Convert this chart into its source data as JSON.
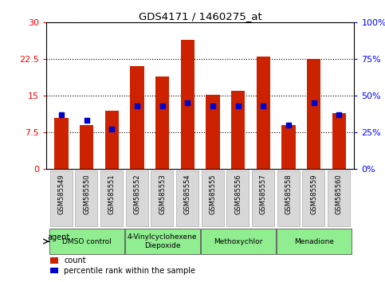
{
  "title": "GDS4171 / 1460275_at",
  "samples": [
    "GSM585549",
    "GSM585550",
    "GSM585551",
    "GSM585552",
    "GSM585553",
    "GSM585554",
    "GSM585555",
    "GSM585556",
    "GSM585557",
    "GSM585558",
    "GSM585559",
    "GSM585560"
  ],
  "count_values": [
    10.5,
    9.0,
    12.0,
    21.0,
    19.0,
    26.5,
    15.2,
    16.0,
    23.0,
    9.0,
    22.5,
    11.5
  ],
  "percentile_values": [
    37,
    33,
    27,
    43,
    43,
    45,
    43,
    43,
    43,
    30,
    45,
    37
  ],
  "count_color": "#cc2200",
  "percentile_color": "#0000cc",
  "ylim_left": [
    0,
    30
  ],
  "ylim_right": [
    0,
    100
  ],
  "yticks_left": [
    0,
    7.5,
    15,
    22.5,
    30
  ],
  "yticks_right": [
    0,
    25,
    50,
    75,
    100
  ],
  "ytick_labels_left": [
    "0",
    "7.5",
    "15",
    "22.5",
    "30"
  ],
  "ytick_labels_right": [
    "0%",
    "25%",
    "50%",
    "75%",
    "100%"
  ],
  "agent_groups": [
    {
      "label": "DMSO control",
      "start": 0,
      "end": 3,
      "color": "#90ee90"
    },
    {
      "label": "4-Vinylcyclohexene\nDiepoxide",
      "start": 3,
      "end": 6,
      "color": "#90ee90"
    },
    {
      "label": "Methoxychlor",
      "start": 6,
      "end": 9,
      "color": "#90ee90"
    },
    {
      "label": "Menadione",
      "start": 9,
      "end": 12,
      "color": "#90ee90"
    }
  ],
  "legend_count_label": "count",
  "legend_percentile_label": "percentile rank within the sample",
  "agent_label": "agent",
  "bar_width": 0.55,
  "xtick_bg": "#d8d8d8"
}
